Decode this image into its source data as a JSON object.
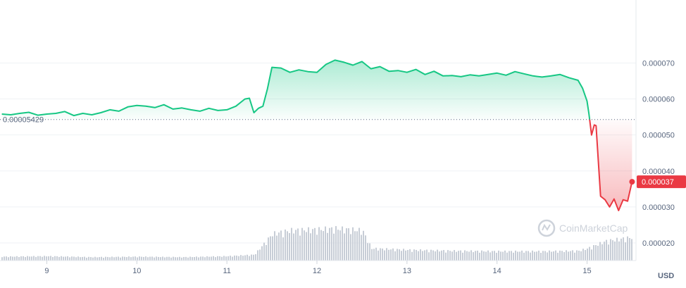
{
  "chart_data": {
    "type": "area",
    "price_series": {
      "name": "",
      "x": [
        8.5,
        8.6,
        8.7,
        8.8,
        8.9,
        9.0,
        9.1,
        9.2,
        9.3,
        9.4,
        9.5,
        9.6,
        9.7,
        9.8,
        9.9,
        10.0,
        10.1,
        10.2,
        10.3,
        10.4,
        10.5,
        10.6,
        10.7,
        10.8,
        10.9,
        11.0,
        11.1,
        11.2,
        11.25,
        11.3,
        11.35,
        11.4,
        11.45,
        11.5,
        11.6,
        11.7,
        11.8,
        11.9,
        12.0,
        12.1,
        12.2,
        12.3,
        12.4,
        12.5,
        12.6,
        12.7,
        12.8,
        12.9,
        13.0,
        13.1,
        13.2,
        13.3,
        13.4,
        13.5,
        13.6,
        13.7,
        13.8,
        13.9,
        14.0,
        14.1,
        14.2,
        14.3,
        14.4,
        14.5,
        14.6,
        14.7,
        14.8,
        14.9,
        14.95,
        15.0,
        15.02,
        15.05,
        15.08,
        15.1,
        15.15,
        15.2,
        15.25,
        15.3,
        15.35,
        15.4,
        15.45,
        15.5
      ],
      "y": [
        5.58e-05,
        5.56e-05,
        5.6e-05,
        5.63e-05,
        5.55e-05,
        5.58e-05,
        5.6e-05,
        5.65e-05,
        5.54e-05,
        5.6e-05,
        5.56e-05,
        5.62e-05,
        5.7e-05,
        5.66e-05,
        5.78e-05,
        5.82e-05,
        5.8e-05,
        5.76e-05,
        5.84e-05,
        5.72e-05,
        5.75e-05,
        5.7e-05,
        5.66e-05,
        5.74e-05,
        5.68e-05,
        5.7e-05,
        5.8e-05,
        6e-05,
        6.02e-05,
        5.62e-05,
        5.74e-05,
        5.8e-05,
        6.28e-05,
        6.88e-05,
        6.86e-05,
        6.74e-05,
        6.81e-05,
        6.76e-05,
        6.74e-05,
        6.96e-05,
        7.08e-05,
        7.02e-05,
        6.94e-05,
        7.04e-05,
        6.84e-05,
        6.9e-05,
        6.77e-05,
        6.79e-05,
        6.74e-05,
        6.82e-05,
        6.68e-05,
        6.77e-05,
        6.64e-05,
        6.65e-05,
        6.62e-05,
        6.67e-05,
        6.64e-05,
        6.68e-05,
        6.72e-05,
        6.66e-05,
        6.76e-05,
        6.7e-05,
        6.64e-05,
        6.61e-05,
        6.64e-05,
        6.68e-05,
        6.59e-05,
        6.52e-05,
        6.3e-05,
        5.94e-05,
        5.6e-05,
        5e-05,
        5.28e-05,
        5.26e-05,
        3.3e-05,
        3.2e-05,
        3e-05,
        3.22e-05,
        2.9e-05,
        3.2e-05,
        3.16e-05,
        3.7e-05
      ]
    },
    "volume_series": {
      "x": [
        8.5,
        9.0,
        9.5,
        10.0,
        10.5,
        11.0,
        11.3,
        11.5,
        11.7,
        12.0,
        12.2,
        12.5,
        12.6,
        13.0,
        13.5,
        14.0,
        14.5,
        14.9,
        15.0,
        15.2,
        15.5
      ],
      "y": [
        0.08,
        0.09,
        0.07,
        0.08,
        0.07,
        0.09,
        0.12,
        0.55,
        0.62,
        0.64,
        0.66,
        0.62,
        0.25,
        0.22,
        0.2,
        0.19,
        0.19,
        0.2,
        0.25,
        0.4,
        0.48
      ]
    },
    "xaxis_labels": [
      "9",
      "10",
      "11",
      "12",
      "13",
      "14",
      "15"
    ],
    "x_ticks": [
      9,
      10,
      11,
      12,
      13,
      14,
      15
    ],
    "xlim": [
      8.48,
      15.52
    ],
    "yaxis_labels": [
      "0.000070",
      "0.000060",
      "0.000050",
      "0.000040",
      "0.000030",
      "0.000020"
    ],
    "y_ticks": [
      7e-05,
      6e-05,
      5e-05,
      4e-05,
      3e-05,
      2e-05
    ],
    "ylim": [
      1.55e-05,
      8.75e-05
    ],
    "reference_line": {
      "value": 5.429e-05,
      "label": "0.00005429"
    },
    "current_price": {
      "value": 3.7e-05,
      "label": "0.000037"
    },
    "unit_label": "USD",
    "grid": true,
    "colors": {
      "up": "#16c784",
      "down": "#ea3943",
      "volume": "#c7cdd6",
      "grid": "#eff2f5",
      "axis_text": "#58667e"
    }
  },
  "watermark": {
    "text": "CoinMarketCap",
    "icon": "coinmarketcap-logo-icon"
  }
}
